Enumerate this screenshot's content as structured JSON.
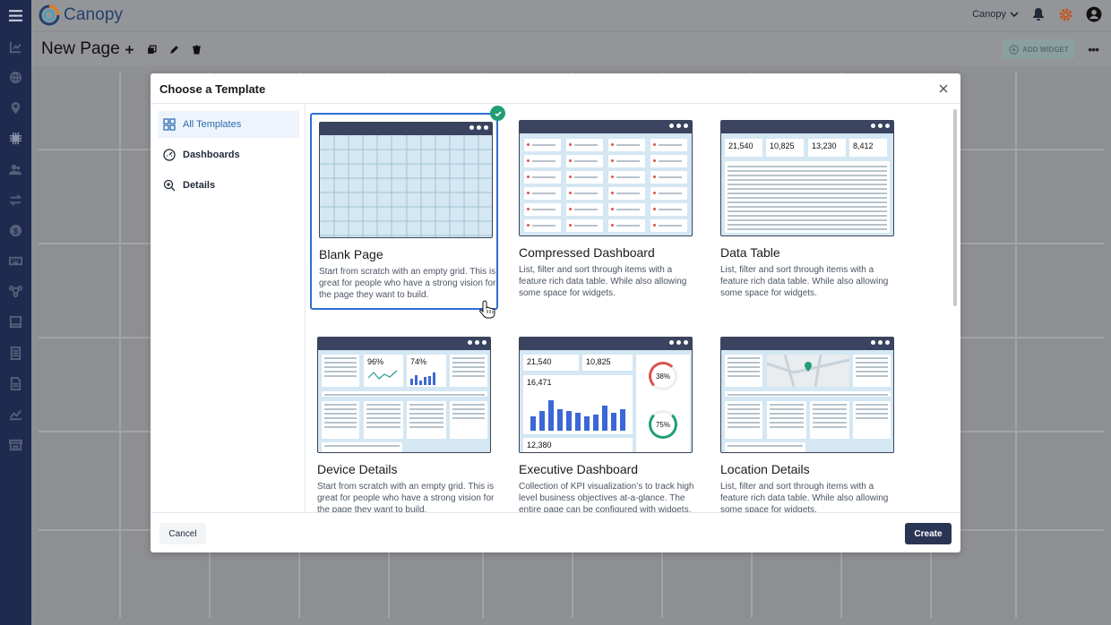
{
  "app": {
    "name": "Canopy"
  },
  "topbar": {
    "user": "Canopy"
  },
  "page": {
    "title": "New Page",
    "add_widget": "ADD WIDGET"
  },
  "sidebar": {
    "items": [
      "menu-icon",
      "chart-icon",
      "globe-icon",
      "location-icon",
      "chip-icon",
      "users-icon",
      "transfer-icon",
      "dollar-icon",
      "keyboard-icon",
      "network-icon",
      "device-icon",
      "document-icon",
      "file-icon",
      "trend-icon",
      "store-icon"
    ]
  },
  "modal": {
    "title": "Choose a Template",
    "categories": [
      {
        "label": "All Templates",
        "icon": "grid-icon",
        "active": true
      },
      {
        "label": "Dashboards",
        "icon": "speedometer-icon"
      },
      {
        "label": "Details",
        "icon": "magnify-icon"
      }
    ],
    "templates": [
      {
        "title": "Blank Page",
        "desc": "Start from scratch with an empty grid. This is great for people who have a strong vision for the page they want to build.",
        "selected": true
      },
      {
        "title": "Compressed Dashboard",
        "desc": "List, filter and sort through items with a feature rich data table. While also allowing some space for widgets."
      },
      {
        "title": "Data Table",
        "desc": "List, filter and sort through items with a feature rich data table. While also allowing some space for widgets."
      },
      {
        "title": "Device Details",
        "desc": "Start from scratch with an empty grid. This is great for people who have a strong vision for the page they want to build."
      },
      {
        "title": "Executive Dashboard",
        "desc": "Collection of KPI visualization’s to track high level business objectives at-a-glance. The entire page can be configured with widgets."
      },
      {
        "title": "Location Details",
        "desc": "List, filter and sort through items with a feature rich data table. While also allowing some space for widgets."
      }
    ],
    "thumb_values": {
      "data_table_kpis": [
        "21,540",
        "10,825",
        "13,230",
        "8,412"
      ],
      "device_pcts": [
        "96%",
        "74%"
      ],
      "exec_kpis": [
        "21,540",
        "10,825",
        "16,471",
        "12,380"
      ],
      "exec_pies": [
        "38%",
        "75%"
      ]
    },
    "cancel": "Cancel",
    "create": "Create"
  },
  "colors": {
    "sidebar": "#1e2b4f",
    "accent": "#2f6fd3",
    "primary_button": "#2a3553",
    "check": "#1f9e77"
  }
}
